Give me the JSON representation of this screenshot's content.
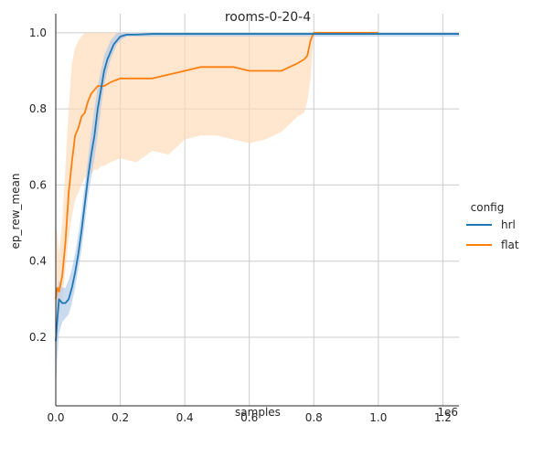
{
  "chart_data": {
    "type": "line",
    "title": "rooms-0-20-4",
    "xlabel": "samples",
    "ylabel": "ep_rew_mean",
    "x_offset_text": "1e6",
    "xlim": [
      0,
      1250000
    ],
    "ylim": [
      0.02,
      1.05
    ],
    "xticks": [
      0,
      200000,
      400000,
      600000,
      800000,
      1000000,
      1200000
    ],
    "xtick_labels": [
      "0.0",
      "0.2",
      "0.4",
      "0.6",
      "0.8",
      "1.0",
      "1.2"
    ],
    "yticks": [
      0.2,
      0.4,
      0.6,
      0.8,
      1.0
    ],
    "ytick_labels": [
      "0.2",
      "0.4",
      "0.6",
      "0.8",
      "1.0"
    ],
    "grid": true,
    "legend": {
      "title": "config",
      "placement": "right"
    },
    "series": [
      {
        "name": "hrl",
        "color": "#1f77b4",
        "band_color": "#aec7e8",
        "x": [
          0,
          5000,
          10000,
          20000,
          30000,
          40000,
          50000,
          60000,
          70000,
          80000,
          90000,
          100000,
          110000,
          120000,
          130000,
          140000,
          150000,
          160000,
          170000,
          180000,
          190000,
          200000,
          220000,
          250000,
          300000,
          400000,
          500000,
          600000,
          700000,
          800000,
          900000,
          1000000,
          1100000,
          1200000,
          1250000
        ],
        "y": [
          0.19,
          0.25,
          0.3,
          0.29,
          0.29,
          0.3,
          0.33,
          0.37,
          0.42,
          0.48,
          0.55,
          0.62,
          0.68,
          0.73,
          0.8,
          0.85,
          0.9,
          0.93,
          0.95,
          0.97,
          0.98,
          0.99,
          0.995,
          0.995,
          0.997,
          0.997,
          0.997,
          0.997,
          0.997,
          0.997,
          0.997,
          0.997,
          0.997,
          0.997,
          0.997
        ],
        "lower": [
          0.06,
          0.15,
          0.21,
          0.24,
          0.25,
          0.26,
          0.29,
          0.33,
          0.38,
          0.43,
          0.5,
          0.57,
          0.62,
          0.67,
          0.73,
          0.8,
          0.86,
          0.9,
          0.93,
          0.95,
          0.97,
          0.98,
          0.99,
          0.99,
          0.99,
          0.99,
          0.99,
          0.99,
          0.99,
          0.99,
          0.99,
          0.99,
          0.99,
          0.99,
          0.99
        ],
        "upper": [
          0.28,
          0.33,
          0.35,
          0.33,
          0.33,
          0.35,
          0.38,
          0.42,
          0.47,
          0.53,
          0.6,
          0.67,
          0.74,
          0.8,
          0.86,
          0.9,
          0.94,
          0.96,
          0.98,
          0.99,
          1.0,
          1.0,
          1.0,
          1.0,
          1.0,
          1.0,
          1.0,
          1.0,
          1.0,
          1.0,
          1.0,
          1.0,
          1.0,
          1.0,
          1.0
        ]
      },
      {
        "name": "flat",
        "color": "#ff7f0e",
        "band_color": "#ffd8b6",
        "x": [
          0,
          5000,
          10000,
          20000,
          30000,
          40000,
          50000,
          60000,
          70000,
          80000,
          90000,
          100000,
          110000,
          120000,
          130000,
          140000,
          150000,
          170000,
          200000,
          250000,
          300000,
          350000,
          400000,
          450000,
          500000,
          550000,
          600000,
          650000,
          700000,
          750000,
          770000,
          780000,
          790000,
          800000,
          850000,
          900000,
          950000,
          1000000
        ],
        "y": [
          0.3,
          0.33,
          0.32,
          0.36,
          0.45,
          0.58,
          0.66,
          0.73,
          0.75,
          0.78,
          0.79,
          0.82,
          0.84,
          0.85,
          0.86,
          0.86,
          0.86,
          0.87,
          0.88,
          0.88,
          0.88,
          0.89,
          0.9,
          0.91,
          0.91,
          0.91,
          0.9,
          0.9,
          0.9,
          0.92,
          0.93,
          0.94,
          0.98,
          1.0,
          1.0,
          1.0,
          1.0,
          1.0
        ],
        "lower": [
          0.12,
          0.22,
          0.25,
          0.3,
          0.38,
          0.46,
          0.52,
          0.56,
          0.58,
          0.6,
          0.62,
          0.63,
          0.63,
          0.64,
          0.64,
          0.65,
          0.65,
          0.66,
          0.67,
          0.66,
          0.69,
          0.68,
          0.72,
          0.73,
          0.73,
          0.72,
          0.71,
          0.72,
          0.74,
          0.78,
          0.79,
          0.82,
          0.88,
          1.0,
          1.0,
          1.0,
          1.0,
          1.0
        ],
        "upper": [
          0.5,
          0.47,
          0.42,
          0.5,
          0.65,
          0.8,
          0.92,
          0.96,
          0.98,
          0.99,
          1.0,
          1.0,
          1.0,
          1.0,
          1.0,
          1.0,
          1.0,
          1.0,
          1.0,
          1.0,
          1.0,
          1.0,
          1.0,
          1.0,
          1.0,
          1.0,
          1.0,
          1.0,
          1.0,
          1.0,
          1.0,
          1.0,
          1.0,
          1.0,
          1.0,
          1.0,
          1.0,
          1.0
        ]
      }
    ]
  }
}
